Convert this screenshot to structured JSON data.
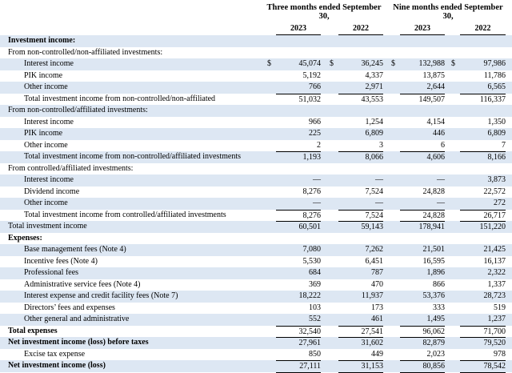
{
  "table": {
    "header": {
      "groups": [
        "Three months ended September 30,",
        "Nine months ended September 30,"
      ],
      "years": [
        "2023",
        "2022",
        "2023",
        "2022"
      ]
    },
    "currency": "$",
    "rows": [
      {
        "label": "Investment income:",
        "values": []
      },
      {
        "label": "From non-controlled/non-affiliated investments:",
        "values": []
      },
      {
        "label": "Interest income",
        "values": [
          "45,074",
          "36,245",
          "132,988",
          "97,986"
        ]
      },
      {
        "label": "PIK income",
        "values": [
          "5,192",
          "4,337",
          "13,875",
          "11,786"
        ]
      },
      {
        "label": "Other income",
        "values": [
          "766",
          "2,971",
          "2,644",
          "6,565"
        ]
      },
      {
        "label": "Total investment income from non-controlled/non-affiliated",
        "values": [
          "51,032",
          "43,553",
          "149,507",
          "116,337"
        ]
      },
      {
        "label": "From non-controlled/affiliated investments:",
        "values": []
      },
      {
        "label": "Interest income",
        "values": [
          "966",
          "1,254",
          "4,154",
          "1,350"
        ]
      },
      {
        "label": "PIK income",
        "values": [
          "225",
          "6,809",
          "446",
          "6,809"
        ]
      },
      {
        "label": "Other income",
        "values": [
          "2",
          "3",
          "6",
          "7"
        ]
      },
      {
        "label": "Total investment income from non-controlled/affiliated investments",
        "values": [
          "1,193",
          "8,066",
          "4,606",
          "8,166"
        ]
      },
      {
        "label": "From controlled/affiliated investments:",
        "values": []
      },
      {
        "label": "Interest income",
        "values": [
          "—",
          "—",
          "—",
          "3,873"
        ]
      },
      {
        "label": "Dividend income",
        "values": [
          "8,276",
          "7,524",
          "24,828",
          "22,572"
        ]
      },
      {
        "label": "Other income",
        "values": [
          "—",
          "—",
          "—",
          "272"
        ]
      },
      {
        "label": "Total investment income from controlled/affiliated investments",
        "values": [
          "8,276",
          "7,524",
          "24,828",
          "26,717"
        ]
      },
      {
        "label": "Total investment income",
        "values": [
          "60,501",
          "59,143",
          "178,941",
          "151,220"
        ]
      },
      {
        "label": "Expenses:",
        "values": []
      },
      {
        "label": "Base management fees (Note 4)",
        "values": [
          "7,080",
          "7,262",
          "21,501",
          "21,425"
        ]
      },
      {
        "label": "Incentive fees (Note 4)",
        "values": [
          "5,530",
          "6,451",
          "16,595",
          "16,137"
        ]
      },
      {
        "label": "Professional fees",
        "values": [
          "684",
          "787",
          "1,896",
          "2,322"
        ]
      },
      {
        "label": "Administrative service fees (Note 4)",
        "values": [
          "369",
          "470",
          "866",
          "1,337"
        ]
      },
      {
        "label": "Interest expense and credit facility fees (Note 7)",
        "values": [
          "18,222",
          "11,937",
          "53,376",
          "28,723"
        ]
      },
      {
        "label": "Directors’ fees and expenses",
        "values": [
          "103",
          "173",
          "333",
          "519"
        ]
      },
      {
        "label": "Other general and administrative",
        "values": [
          "552",
          "461",
          "1,495",
          "1,237"
        ]
      },
      {
        "label": "Total expenses",
        "values": [
          "32,540",
          "27,541",
          "96,062",
          "71,700"
        ]
      },
      {
        "label": "Net investment income (loss) before taxes",
        "values": [
          "27,961",
          "31,602",
          "82,879",
          "79,520"
        ]
      },
      {
        "label": "Excise tax expense",
        "values": [
          "850",
          "449",
          "2,023",
          "978"
        ]
      },
      {
        "label": "Net investment income (loss)",
        "values": [
          "27,111",
          "31,153",
          "80,856",
          "78,542"
        ]
      }
    ]
  }
}
